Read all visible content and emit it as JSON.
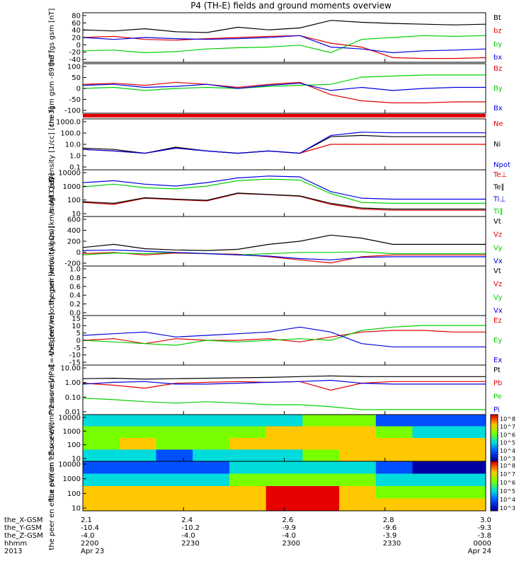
{
  "title": "P4 (TH-E) fields and ground moments overview",
  "colors": {
    "black": "#000000",
    "red": "#e00000",
    "green": "#00d000",
    "blue": "#0000e0"
  },
  "chart_data": [
    {
      "type": "line",
      "ylabel": "the fgs gsm [nT]",
      "ylim": [
        -40,
        90
      ],
      "yticks": [
        "80",
        "60",
        "40",
        "20",
        "0",
        "-20",
        "-40"
      ],
      "series": [
        {
          "name": "Bt",
          "color": "black",
          "values": [
            45,
            42,
            48,
            40,
            38,
            52,
            45,
            50,
            70,
            65,
            62,
            60,
            58,
            60
          ]
        },
        {
          "name": "bz",
          "color": "red",
          "values": [
            25,
            28,
            20,
            18,
            22,
            25,
            28,
            30,
            10,
            0,
            -28,
            -30,
            -30,
            -28
          ]
        },
        {
          "name": "by",
          "color": "green",
          "values": [
            -10,
            -8,
            -15,
            -12,
            -5,
            -2,
            0,
            5,
            -15,
            20,
            25,
            30,
            28,
            30
          ]
        },
        {
          "name": "bx",
          "color": "blue",
          "values": [
            25,
            20,
            25,
            22,
            20,
            22,
            25,
            30,
            0,
            -5,
            -15,
            -10,
            -8,
            -5
          ]
        }
      ]
    },
    {
      "type": "line",
      "ylabel": "the fgm gsm -89 [nT]",
      "ylim": [
        -130,
        110
      ],
      "yticks": [
        "100",
        "50",
        "0",
        "-50",
        "-100"
      ],
      "series": [
        {
          "name": "Bz",
          "color": "red",
          "values": [
            10,
            15,
            5,
            20,
            10,
            -5,
            10,
            20,
            -40,
            -70,
            -80,
            -80,
            -75,
            -75
          ]
        },
        {
          "name": "By",
          "color": "green",
          "values": [
            -10,
            -5,
            -20,
            -10,
            -5,
            -10,
            0,
            5,
            10,
            45,
            50,
            55,
            55,
            55
          ]
        },
        {
          "name": "Bx",
          "color": "blue",
          "values": [
            5,
            10,
            -5,
            0,
            10,
            -10,
            5,
            15,
            -20,
            -5,
            -20,
            -10,
            -5,
            -5
          ]
        }
      ]
    },
    {
      "type": "line",
      "ylabel": "Density [1/cc] [cm-3]",
      "ylim": [
        0.1,
        1000
      ],
      "yscale": "log",
      "yticks": [
        "1000.0",
        "100.0",
        "10.0",
        "1.0",
        "0.1"
      ],
      "series": [
        {
          "name": "Ne",
          "color": "red",
          "values": [
            4,
            3,
            2,
            5,
            3,
            2,
            3,
            2,
            10,
            10,
            10,
            10,
            10,
            10
          ]
        },
        {
          "name": "Ni",
          "color": "black",
          "values": [
            5,
            4,
            2,
            6,
            3,
            2,
            3,
            2,
            40,
            50,
            40,
            40,
            40,
            40
          ]
        },
        {
          "name": "Npot",
          "color": "blue",
          "values": [
            4,
            3,
            2,
            5,
            3,
            2,
            3,
            2,
            50,
            90,
            80,
            80,
            80,
            80
          ]
        }
      ]
    },
    {
      "type": "line",
      "ylabel": "magt3 [eV]",
      "ylim": [
        10,
        10000
      ],
      "yscale": "log",
      "yticks": [
        "10000",
        "1000",
        "100",
        "10"
      ],
      "series": [
        {
          "name": "Te⊥",
          "color": "red",
          "values": [
            80,
            60,
            150,
            120,
            100,
            300,
            250,
            200,
            60,
            30,
            25,
            25,
            25,
            25
          ]
        },
        {
          "name": "Te∥",
          "color": "black",
          "values": [
            90,
            70,
            160,
            130,
            110,
            320,
            260,
            210,
            70,
            35,
            30,
            30,
            30,
            30
          ]
        },
        {
          "name": "Ti⊥",
          "color": "blue",
          "values": [
            1500,
            2000,
            1200,
            900,
            1500,
            3000,
            4000,
            3500,
            400,
            150,
            130,
            130,
            130,
            130
          ]
        },
        {
          "name": "Ti∥",
          "color": "green",
          "values": [
            800,
            1200,
            700,
            600,
            900,
            2000,
            2500,
            2200,
            300,
            80,
            70,
            70,
            70,
            70
          ]
        }
      ]
    },
    {
      "type": "line",
      "ylabel": "the peir velocity gsm [km/s (All Qs)]",
      "ylim": [
        -200,
        600
      ],
      "yticks": [
        "600",
        "400",
        "200",
        "0",
        "-200"
      ],
      "series": [
        {
          "name": "Vt",
          "color": "black",
          "values": [
            100,
            150,
            80,
            60,
            50,
            70,
            150,
            200,
            300,
            250,
            150,
            150,
            150,
            150
          ]
        },
        {
          "name": "Vz",
          "color": "red",
          "values": [
            0,
            20,
            -20,
            10,
            0,
            -10,
            -50,
            -100,
            -150,
            -50,
            -20,
            -20,
            -20,
            -20
          ]
        },
        {
          "name": "Vy",
          "color": "green",
          "values": [
            -20,
            10,
            0,
            20,
            0,
            -20,
            0,
            20,
            20,
            30,
            0,
            0,
            0,
            0
          ]
        },
        {
          "name": "Vx",
          "color": "blue",
          "values": [
            50,
            60,
            40,
            20,
            0,
            -20,
            -40,
            -80,
            -100,
            -60,
            -50,
            -50,
            -50,
            -50
          ]
        }
      ]
    },
    {
      "type": "line",
      "ylabel": "the peer velocity gsm [km/s (All Qs)]",
      "ylim": [
        0,
        1
      ],
      "yticks": [
        "1.0",
        "0.8",
        "0.6",
        "0.4",
        "0.2",
        "0.0"
      ],
      "series": [
        {
          "name": "Vt",
          "color": "black",
          "values": []
        },
        {
          "name": "Vz",
          "color": "red",
          "values": []
        },
        {
          "name": "Vy",
          "color": "green",
          "values": []
        },
        {
          "name": "Vx",
          "color": "blue",
          "values": []
        }
      ]
    },
    {
      "type": "line",
      "ylabel": "E=-VxB [mV/m]",
      "ylim": [
        -15,
        15
      ],
      "yticks": [
        "15",
        "10",
        "5",
        "0",
        "-5",
        "-10",
        "-15"
      ],
      "series": [
        {
          "name": "Ez",
          "color": "red",
          "values": [
            0,
            1,
            -2,
            1,
            0,
            0,
            1,
            -1,
            2,
            5,
            6,
            6,
            5,
            5
          ]
        },
        {
          "name": "Ey",
          "color": "green",
          "values": [
            0,
            -1,
            -2,
            -3,
            0,
            -1,
            0,
            1,
            0,
            6,
            8,
            9,
            9,
            9
          ]
        },
        {
          "name": "Ex",
          "color": "blue",
          "values": [
            3,
            4,
            5,
            2,
            3,
            4,
            5,
            8,
            5,
            -2,
            -4,
            -4,
            -4,
            -4
          ]
        }
      ]
    },
    {
      "type": "line",
      "ylabel": "Pressure [nPa]",
      "ylim": [
        0.01,
        10
      ],
      "yscale": "log",
      "yticks": [
        "10.00",
        "1.00",
        "0.10",
        "0.01"
      ],
      "series": [
        {
          "name": "Pt",
          "color": "black",
          "values": [
            1.5,
            1.6,
            1.4,
            1.5,
            1.6,
            1.7,
            1.8,
            2.0,
            2.2,
            2.0,
            2.0,
            2.0,
            2.0,
            2.0
          ]
        },
        {
          "name": "Pb",
          "color": "red",
          "values": [
            0.8,
            0.6,
            0.4,
            0.8,
            0.9,
            1.0,
            0.9,
            1.0,
            0.3,
            0.8,
            1.0,
            1.0,
            1.0,
            1.0
          ]
        },
        {
          "name": "Pe",
          "color": "green",
          "values": [
            0.1,
            0.08,
            0.06,
            0.05,
            0.06,
            0.05,
            0.04,
            0.04,
            0.03,
            0.02,
            0.02,
            0.02,
            0.02,
            0.02
          ]
        },
        {
          "name": "Pi",
          "color": "blue",
          "values": [
            0.7,
            0.9,
            1.0,
            0.7,
            0.7,
            0.8,
            0.9,
            1.0,
            1.2,
            0.8,
            0.7,
            0.7,
            0.7,
            0.7
          ]
        }
      ]
    },
    {
      "type": "heatmap",
      "ylabel": "the peir en eflux eV/(cm^2-s-sr-eV)",
      "yscale": "log",
      "yticks": [
        "10000",
        "1000",
        "100",
        "10"
      ],
      "colorbar": [
        "10^8",
        "10^7",
        "10^6",
        "10^5",
        "10^4",
        "10^3"
      ],
      "time_fraction": [
        0,
        0.1,
        0.2,
        0.3,
        0.4,
        0.5,
        0.6,
        0.7,
        0.8,
        0.9,
        1.0
      ],
      "values_log": [
        [
          5,
          5,
          5,
          5,
          5,
          5,
          6,
          6,
          4,
          4,
          4
        ],
        [
          6,
          6,
          6,
          6,
          6,
          7,
          7,
          7,
          6,
          5,
          5
        ],
        [
          6,
          7,
          6,
          6,
          7,
          7,
          7,
          7,
          7,
          7,
          7
        ],
        [
          5,
          5,
          4,
          5,
          5,
          5,
          6,
          7,
          7,
          7,
          7
        ]
      ]
    },
    {
      "type": "heatmap",
      "ylabel": "the peer en eflux eV/(cm^2-s-sr-eV)",
      "yscale": "log",
      "yticks": [
        "10000",
        "1000",
        "100",
        "10"
      ],
      "colorbar": [
        "10^8",
        "10^7",
        "10^6",
        "10^5",
        "10^4",
        "10^3"
      ],
      "time_fraction": [
        0,
        0.1,
        0.2,
        0.3,
        0.4,
        0.5,
        0.6,
        0.7,
        0.8,
        0.9,
        1.0
      ],
      "values_log": [
        [
          4,
          4,
          4,
          4,
          5,
          5,
          5,
          5,
          4,
          3,
          3
        ],
        [
          5,
          5,
          5,
          5,
          6,
          6,
          6,
          6,
          5,
          5,
          5
        ],
        [
          7,
          7,
          7,
          7,
          7,
          8,
          8,
          7,
          6,
          6,
          6
        ],
        [
          7,
          7,
          7,
          7,
          7,
          8,
          8,
          7,
          7,
          7,
          7
        ]
      ]
    }
  ],
  "xaxis": {
    "row_labels": [
      "the_X-GSM",
      "the_Y-GSM",
      "the_Z-GSM",
      "hhmm",
      "2013"
    ],
    "ticks": [
      {
        "frac": 0.0,
        "rows": [
          "2.1",
          "-10.4",
          "-4.0",
          "2200",
          "Apr 23"
        ]
      },
      {
        "frac": 0.25,
        "rows": [
          "2.4",
          "-10.2",
          "-4.0",
          "2230",
          ""
        ]
      },
      {
        "frac": 0.5,
        "rows": [
          "2.6",
          "-9.9",
          "-4.0",
          "2300",
          ""
        ]
      },
      {
        "frac": 0.75,
        "rows": [
          "2.8",
          "-9.6",
          "-3.9",
          "2330",
          ""
        ]
      },
      {
        "frac": 1.0,
        "rows": [
          "3.0",
          "-9.3",
          "-3.8",
          "0000",
          "Apr 24"
        ]
      }
    ]
  }
}
